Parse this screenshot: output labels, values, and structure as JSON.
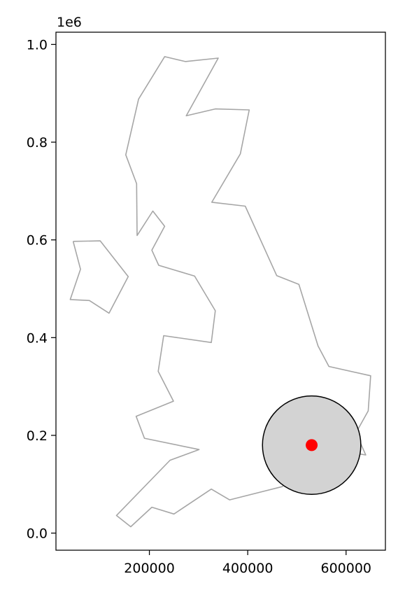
{
  "chart_data": {
    "type": "map",
    "y_offset_label": "1e6",
    "xlim": [
      10000,
      680000
    ],
    "ylim": [
      -35000,
      1025000
    ],
    "x_ticks": [
      {
        "value": 200000,
        "label": "200000"
      },
      {
        "value": 400000,
        "label": "400000"
      },
      {
        "value": 600000,
        "label": "600000"
      }
    ],
    "y_ticks": [
      {
        "value": 0,
        "label": "0.0"
      },
      {
        "value": 200000,
        "label": "0.2"
      },
      {
        "value": 400000,
        "label": "0.4"
      },
      {
        "value": 600000,
        "label": "0.6"
      },
      {
        "value": 800000,
        "label": "0.8"
      },
      {
        "value": 1000000,
        "label": "1.0"
      }
    ],
    "outlines": [
      {
        "name": "great-britain",
        "color": "#a6a6a6",
        "points": [
          [
            545000,
            175000
          ],
          [
            640000,
            160000
          ],
          [
            620000,
            205000
          ],
          [
            645000,
            250000
          ],
          [
            650000,
            322000
          ],
          [
            565000,
            341000
          ],
          [
            543000,
            383000
          ],
          [
            504000,
            509000
          ],
          [
            459000,
            527000
          ],
          [
            395000,
            669000
          ],
          [
            327000,
            677000
          ],
          [
            385000,
            776000
          ],
          [
            403000,
            866000
          ],
          [
            334000,
            868000
          ],
          [
            275000,
            854000
          ],
          [
            340000,
            972000
          ],
          [
            273000,
            965000
          ],
          [
            231000,
            975000
          ],
          [
            178000,
            888000
          ],
          [
            152000,
            774000
          ],
          [
            174000,
            715000
          ],
          [
            175000,
            609000
          ],
          [
            207000,
            659000
          ],
          [
            231000,
            628000
          ],
          [
            205000,
            579000
          ],
          [
            219000,
            548000
          ],
          [
            292000,
            526000
          ],
          [
            334000,
            455000
          ],
          [
            326000,
            390000
          ],
          [
            229000,
            404000
          ],
          [
            218000,
            331000
          ],
          [
            249000,
            270000
          ],
          [
            173000,
            239000
          ],
          [
            190000,
            194000
          ],
          [
            301000,
            171000
          ],
          [
            242000,
            149000
          ],
          [
            133000,
            36000
          ],
          [
            162000,
            13000
          ],
          [
            205000,
            53000
          ],
          [
            250000,
            39000
          ],
          [
            326000,
            90000
          ],
          [
            363000,
            68000
          ],
          [
            470000,
            95000
          ],
          [
            545000,
            175000
          ]
        ]
      },
      {
        "name": "ireland",
        "color": "#a6a6a6",
        "points": [
          [
            45000,
            597000
          ],
          [
            100000,
            598000
          ],
          [
            157000,
            525000
          ],
          [
            118000,
            450000
          ],
          [
            78000,
            476000
          ],
          [
            39000,
            478000
          ],
          [
            60000,
            540000
          ],
          [
            45000,
            597000
          ]
        ]
      }
    ],
    "buffer": {
      "center": [
        530000,
        180000
      ],
      "radius": 100000,
      "fill": "#d3d3d3",
      "stroke": "#000000"
    },
    "point": {
      "x": 530000,
      "y": 180000,
      "color": "#ff0000"
    }
  }
}
